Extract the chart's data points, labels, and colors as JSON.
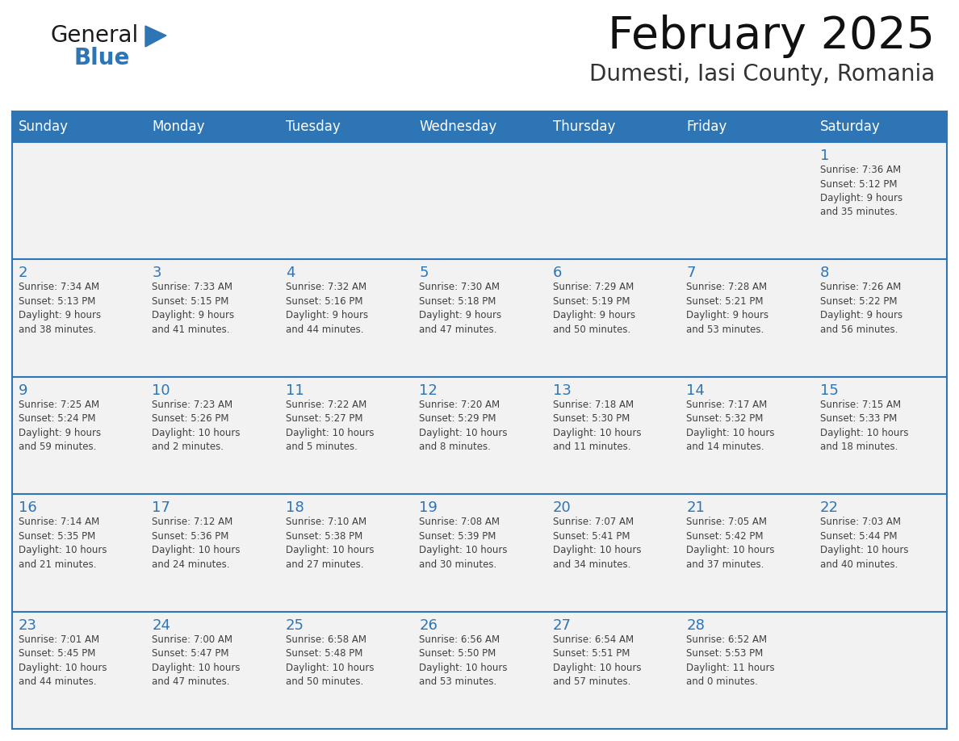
{
  "title": "February 2025",
  "subtitle": "Dumesti, Iasi County, Romania",
  "header_bg": "#2E75B6",
  "header_text_color": "#FFFFFF",
  "cell_bg": "#FFFFFF",
  "day_number_color": "#2E75B6",
  "text_color": "#404040",
  "line_color": "#2E75B6",
  "days_of_week": [
    "Sunday",
    "Monday",
    "Tuesday",
    "Wednesday",
    "Thursday",
    "Friday",
    "Saturday"
  ],
  "weeks": [
    [
      {
        "day": null,
        "info": null
      },
      {
        "day": null,
        "info": null
      },
      {
        "day": null,
        "info": null
      },
      {
        "day": null,
        "info": null
      },
      {
        "day": null,
        "info": null
      },
      {
        "day": null,
        "info": null
      },
      {
        "day": "1",
        "info": "Sunrise: 7:36 AM\nSunset: 5:12 PM\nDaylight: 9 hours\nand 35 minutes."
      }
    ],
    [
      {
        "day": "2",
        "info": "Sunrise: 7:34 AM\nSunset: 5:13 PM\nDaylight: 9 hours\nand 38 minutes."
      },
      {
        "day": "3",
        "info": "Sunrise: 7:33 AM\nSunset: 5:15 PM\nDaylight: 9 hours\nand 41 minutes."
      },
      {
        "day": "4",
        "info": "Sunrise: 7:32 AM\nSunset: 5:16 PM\nDaylight: 9 hours\nand 44 minutes."
      },
      {
        "day": "5",
        "info": "Sunrise: 7:30 AM\nSunset: 5:18 PM\nDaylight: 9 hours\nand 47 minutes."
      },
      {
        "day": "6",
        "info": "Sunrise: 7:29 AM\nSunset: 5:19 PM\nDaylight: 9 hours\nand 50 minutes."
      },
      {
        "day": "7",
        "info": "Sunrise: 7:28 AM\nSunset: 5:21 PM\nDaylight: 9 hours\nand 53 minutes."
      },
      {
        "day": "8",
        "info": "Sunrise: 7:26 AM\nSunset: 5:22 PM\nDaylight: 9 hours\nand 56 minutes."
      }
    ],
    [
      {
        "day": "9",
        "info": "Sunrise: 7:25 AM\nSunset: 5:24 PM\nDaylight: 9 hours\nand 59 minutes."
      },
      {
        "day": "10",
        "info": "Sunrise: 7:23 AM\nSunset: 5:26 PM\nDaylight: 10 hours\nand 2 minutes."
      },
      {
        "day": "11",
        "info": "Sunrise: 7:22 AM\nSunset: 5:27 PM\nDaylight: 10 hours\nand 5 minutes."
      },
      {
        "day": "12",
        "info": "Sunrise: 7:20 AM\nSunset: 5:29 PM\nDaylight: 10 hours\nand 8 minutes."
      },
      {
        "day": "13",
        "info": "Sunrise: 7:18 AM\nSunset: 5:30 PM\nDaylight: 10 hours\nand 11 minutes."
      },
      {
        "day": "14",
        "info": "Sunrise: 7:17 AM\nSunset: 5:32 PM\nDaylight: 10 hours\nand 14 minutes."
      },
      {
        "day": "15",
        "info": "Sunrise: 7:15 AM\nSunset: 5:33 PM\nDaylight: 10 hours\nand 18 minutes."
      }
    ],
    [
      {
        "day": "16",
        "info": "Sunrise: 7:14 AM\nSunset: 5:35 PM\nDaylight: 10 hours\nand 21 minutes."
      },
      {
        "day": "17",
        "info": "Sunrise: 7:12 AM\nSunset: 5:36 PM\nDaylight: 10 hours\nand 24 minutes."
      },
      {
        "day": "18",
        "info": "Sunrise: 7:10 AM\nSunset: 5:38 PM\nDaylight: 10 hours\nand 27 minutes."
      },
      {
        "day": "19",
        "info": "Sunrise: 7:08 AM\nSunset: 5:39 PM\nDaylight: 10 hours\nand 30 minutes."
      },
      {
        "day": "20",
        "info": "Sunrise: 7:07 AM\nSunset: 5:41 PM\nDaylight: 10 hours\nand 34 minutes."
      },
      {
        "day": "21",
        "info": "Sunrise: 7:05 AM\nSunset: 5:42 PM\nDaylight: 10 hours\nand 37 minutes."
      },
      {
        "day": "22",
        "info": "Sunrise: 7:03 AM\nSunset: 5:44 PM\nDaylight: 10 hours\nand 40 minutes."
      }
    ],
    [
      {
        "day": "23",
        "info": "Sunrise: 7:01 AM\nSunset: 5:45 PM\nDaylight: 10 hours\nand 44 minutes."
      },
      {
        "day": "24",
        "info": "Sunrise: 7:00 AM\nSunset: 5:47 PM\nDaylight: 10 hours\nand 47 minutes."
      },
      {
        "day": "25",
        "info": "Sunrise: 6:58 AM\nSunset: 5:48 PM\nDaylight: 10 hours\nand 50 minutes."
      },
      {
        "day": "26",
        "info": "Sunrise: 6:56 AM\nSunset: 5:50 PM\nDaylight: 10 hours\nand 53 minutes."
      },
      {
        "day": "27",
        "info": "Sunrise: 6:54 AM\nSunset: 5:51 PM\nDaylight: 10 hours\nand 57 minutes."
      },
      {
        "day": "28",
        "info": "Sunrise: 6:52 AM\nSunset: 5:53 PM\nDaylight: 11 hours\nand 0 minutes."
      },
      {
        "day": null,
        "info": null
      }
    ]
  ],
  "logo_general_color": "#1a1a1a",
  "logo_blue_color": "#2E75B6",
  "figsize": [
    11.88,
    9.18
  ],
  "dpi": 100
}
